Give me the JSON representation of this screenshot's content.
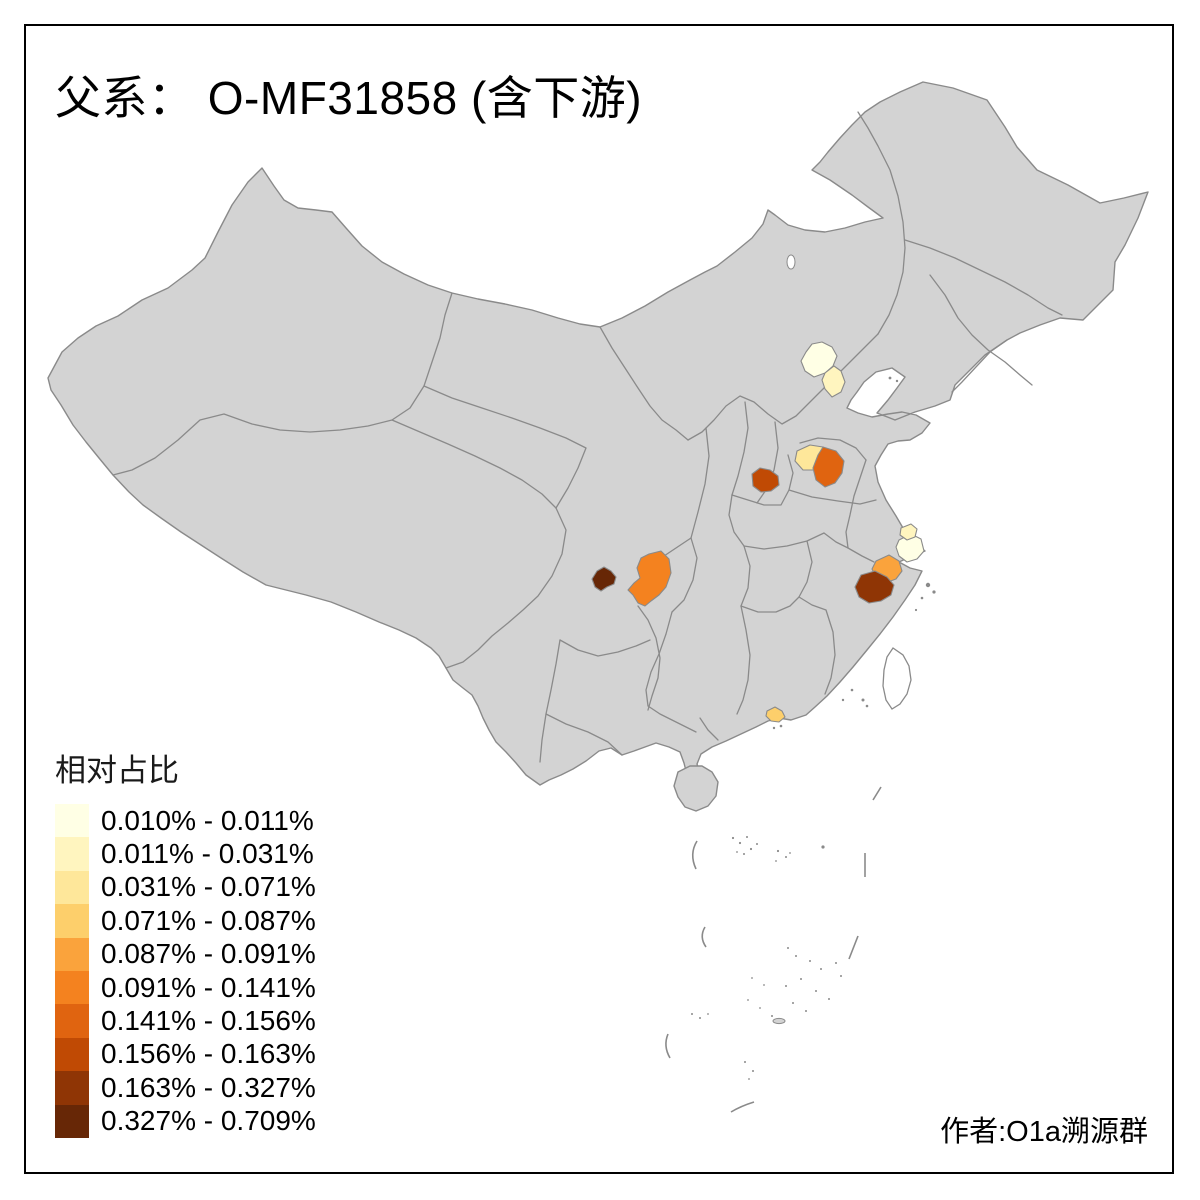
{
  "title": {
    "prefix": "父系：",
    "main": "  O-MF31858 (含下游)"
  },
  "legend": {
    "title": "相对占比",
    "classes": [
      {
        "label": "0.010% - 0.011%",
        "color": "#FFFFE5"
      },
      {
        "label": "0.011% - 0.031%",
        "color": "#FFF5BF"
      },
      {
        "label": "0.031% - 0.071%",
        "color": "#FEE79A"
      },
      {
        "label": "0.071% - 0.087%",
        "color": "#FDCF6B"
      },
      {
        "label": "0.087% - 0.091%",
        "color": "#FAA33C"
      },
      {
        "label": "0.091% - 0.141%",
        "color": "#F4821F"
      },
      {
        "label": "0.141% - 0.156%",
        "color": "#E06410"
      },
      {
        "label": "0.156% - 0.163%",
        "color": "#C04A04"
      },
      {
        "label": "0.163% - 0.327%",
        "color": "#8F3505"
      },
      {
        "label": "0.327% - 0.709%",
        "color": "#672706"
      }
    ]
  },
  "attribution": "作者:O1a溯源群",
  "map": {
    "background": "#FFFFFF",
    "base_fill": "#D3D3D3",
    "border_color": "#8A8A8A",
    "frame_color": "#000000",
    "uncolored_island_fill": "#FFFFFF",
    "highlighted_regions": [
      {
        "id": "beijing-area",
        "class_index": 0
      },
      {
        "id": "tianjin-area",
        "class_index": 1
      },
      {
        "id": "shanghai-area",
        "class_index": 0
      },
      {
        "id": "jiangsu-coastal-area",
        "class_index": 1
      },
      {
        "id": "shandong-west-area",
        "class_index": 2
      },
      {
        "id": "pearl-river-delta-area",
        "class_index": 3
      },
      {
        "id": "zhejiang-north-area",
        "class_index": 4
      },
      {
        "id": "chongqing-west-area",
        "class_index": 5
      },
      {
        "id": "shandong-central-area",
        "class_index": 6
      },
      {
        "id": "henan-central-area",
        "class_index": 7
      },
      {
        "id": "zhejiang-central-area",
        "class_index": 8
      },
      {
        "id": "sichuan-south-area",
        "class_index": 9
      }
    ]
  },
  "chart_data": {
    "type": "heatmap",
    "subtype": "choropleth-map-of-china",
    "title": "父系： O-MF31858 (含下游)",
    "legend_title": "相对占比",
    "legend_position": "bottom-left",
    "class_breaks_percent": [
      0.01,
      0.011,
      0.031,
      0.071,
      0.087,
      0.091,
      0.141,
      0.156,
      0.163,
      0.327,
      0.709
    ],
    "palette": [
      "#FFFFE5",
      "#FFF5BF",
      "#FEE79A",
      "#FDCF6B",
      "#FAA33C",
      "#F4821F",
      "#E06410",
      "#C04A04",
      "#8F3505",
      "#672706"
    ],
    "regions": [
      {
        "id": "beijing-area",
        "range": "0.010% - 0.011%"
      },
      {
        "id": "tianjin-area",
        "range": "0.011% - 0.031%"
      },
      {
        "id": "shanghai-area",
        "range": "0.010% - 0.011%"
      },
      {
        "id": "jiangsu-coastal-area",
        "range": "0.011% - 0.031%"
      },
      {
        "id": "shandong-west-area",
        "range": "0.031% - 0.071%"
      },
      {
        "id": "pearl-river-delta-area",
        "range": "0.071% - 0.087%"
      },
      {
        "id": "zhejiang-north-area",
        "range": "0.087% - 0.091%"
      },
      {
        "id": "chongqing-west-area",
        "range": "0.091% - 0.141%"
      },
      {
        "id": "shandong-central-area",
        "range": "0.141% - 0.156%"
      },
      {
        "id": "henan-central-area",
        "range": "0.156% - 0.163%"
      },
      {
        "id": "zhejiang-central-area",
        "range": "0.163% - 0.327%"
      },
      {
        "id": "sichuan-south-area",
        "range": "0.327% - 0.709%"
      }
    ],
    "attribution": "作者:O1a溯源群"
  }
}
